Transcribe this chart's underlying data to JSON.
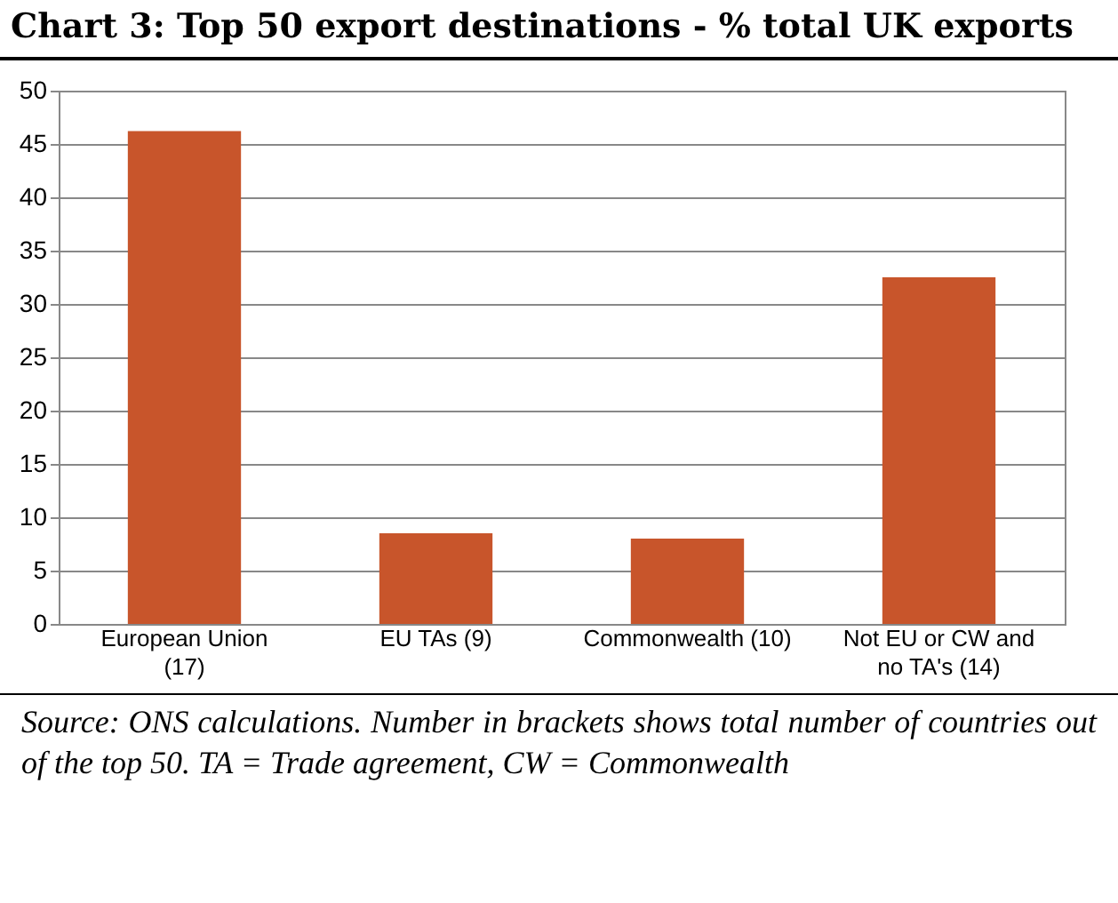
{
  "chart_data": {
    "type": "bar",
    "title": "Chart 3: Top 50 export destinations - % total UK exports",
    "categories": [
      "European Union (17)",
      "EU TAs (9)",
      "Commonwealth (10)",
      "Not EU or CW and no TA's (14)"
    ],
    "values": [
      46.2,
      8.5,
      8.0,
      32.5
    ],
    "color": "#c8552b",
    "ylim": [
      0,
      50
    ],
    "yticks": [
      0,
      5,
      10,
      15,
      20,
      25,
      30,
      35,
      40,
      45,
      50
    ],
    "grid": "y",
    "annotations": [
      "Source: ONS calculations. Number in brackets shows total number of countries out of the top 50. TA = Trade agreement, CW = Commonwealth"
    ]
  }
}
